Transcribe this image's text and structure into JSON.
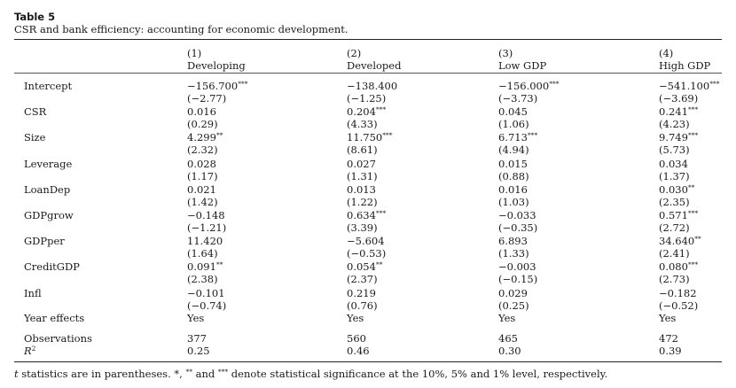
{
  "table_label": "Table 5",
  "caption": "CSR and bank efficiency: accounting for economic development.",
  "columns": [
    {
      "num": "(1)",
      "name": "Developing"
    },
    {
      "num": "(2)",
      "name": "Developed"
    },
    {
      "num": "(3)",
      "name": "Low GDP"
    },
    {
      "num": "(4)",
      "name": "High GDP"
    }
  ],
  "rows": [
    {
      "label": "Intercept",
      "cells": [
        {
          "coef": "−156.700",
          "stars": "***",
          "t": "(−2.77)"
        },
        {
          "coef": "−138.400",
          "stars": "",
          "t": "(−1.25)"
        },
        {
          "coef": "−156.000",
          "stars": "***",
          "t": "(−3.73)"
        },
        {
          "coef": "−541.100",
          "stars": "***",
          "t": "(−3.69)"
        }
      ]
    },
    {
      "label": "CSR",
      "cells": [
        {
          "coef": "0.016",
          "stars": "",
          "t": "(0.29)"
        },
        {
          "coef": "0.204",
          "stars": "***",
          "t": "(4.33)"
        },
        {
          "coef": "0.045",
          "stars": "",
          "t": "(1.06)"
        },
        {
          "coef": "0.241",
          "stars": "***",
          "t": "(4.23)"
        }
      ]
    },
    {
      "label": "Size",
      "cells": [
        {
          "coef": "4.299",
          "stars": "**",
          "t": "(2.32)"
        },
        {
          "coef": "11.750",
          "stars": "***",
          "t": "(8.61)"
        },
        {
          "coef": "6.713",
          "stars": "***",
          "t": "(4.94)"
        },
        {
          "coef": "9.749",
          "stars": "***",
          "t": "(5.73)"
        }
      ]
    },
    {
      "label": "Leverage",
      "cells": [
        {
          "coef": "0.028",
          "stars": "",
          "t": "(1.17)"
        },
        {
          "coef": "0.027",
          "stars": "",
          "t": "(1.31)"
        },
        {
          "coef": "0.015",
          "stars": "",
          "t": "(0.88)"
        },
        {
          "coef": "0.034",
          "stars": "",
          "t": "(1.37)"
        }
      ]
    },
    {
      "label": "LoanDep",
      "cells": [
        {
          "coef": "0.021",
          "stars": "",
          "t": "(1.42)"
        },
        {
          "coef": "0.013",
          "stars": "",
          "t": "(1.22)"
        },
        {
          "coef": "0.016",
          "stars": "",
          "t": "(1.03)"
        },
        {
          "coef": "0.030",
          "stars": "**",
          "t": "(2.35)"
        }
      ]
    },
    {
      "label": "GDPgrow",
      "cells": [
        {
          "coef": "−0.148",
          "stars": "",
          "t": "(−1.21)"
        },
        {
          "coef": "0.634",
          "stars": "***",
          "t": "(3.39)"
        },
        {
          "coef": "−0.033",
          "stars": "",
          "t": "(−0.35)"
        },
        {
          "coef": "0.571",
          "stars": "***",
          "t": "(2.72)"
        }
      ]
    },
    {
      "label": "GDPper",
      "cells": [
        {
          "coef": "11.420",
          "stars": "",
          "t": "(1.64)"
        },
        {
          "coef": "−5.604",
          "stars": "",
          "t": "(−0.53)"
        },
        {
          "coef": "6.893",
          "stars": "",
          "t": "(1.33)"
        },
        {
          "coef": "34.640",
          "stars": "**",
          "t": "(2.41)"
        }
      ]
    },
    {
      "label": "CreditGDP",
      "cells": [
        {
          "coef": "0.091",
          "stars": "**",
          "t": "(2.38)"
        },
        {
          "coef": "0.054",
          "stars": "**",
          "t": "(2.37)"
        },
        {
          "coef": "−0.003",
          "stars": "",
          "t": "(−0.15)"
        },
        {
          "coef": "0.080",
          "stars": "***",
          "t": "(2.73)"
        }
      ]
    },
    {
      "label": "Infl",
      "cells": [
        {
          "coef": "−0.101",
          "stars": "",
          "t": "(−0.74)"
        },
        {
          "coef": "0.219",
          "stars": "",
          "t": "(0.76)"
        },
        {
          "coef": "0.029",
          "stars": "",
          "t": "(0.25)"
        },
        {
          "coef": "−0.182",
          "stars": "",
          "t": "(−0.52)"
        }
      ]
    }
  ],
  "year_effects": {
    "label": "Year effects",
    "values": [
      "Yes",
      "Yes",
      "Yes",
      "Yes"
    ]
  },
  "observations": {
    "label": "Observations",
    "values": [
      "377",
      "560",
      "465",
      "472"
    ]
  },
  "r2": {
    "label_base": "R",
    "label_sup": "2",
    "values": [
      "0.25",
      "0.46",
      "0.30",
      "0.39"
    ]
  },
  "footnote": {
    "t_symbol": "t",
    "text_1": " statistics are in parentheses. ",
    "sig_1": "*",
    "sep_1": ", ",
    "sig_2": "**",
    "sep_2": " and ",
    "sig_3": "***",
    "text_2": " denote statistical significance at the 10%, 5% and 1% level, respectively."
  }
}
